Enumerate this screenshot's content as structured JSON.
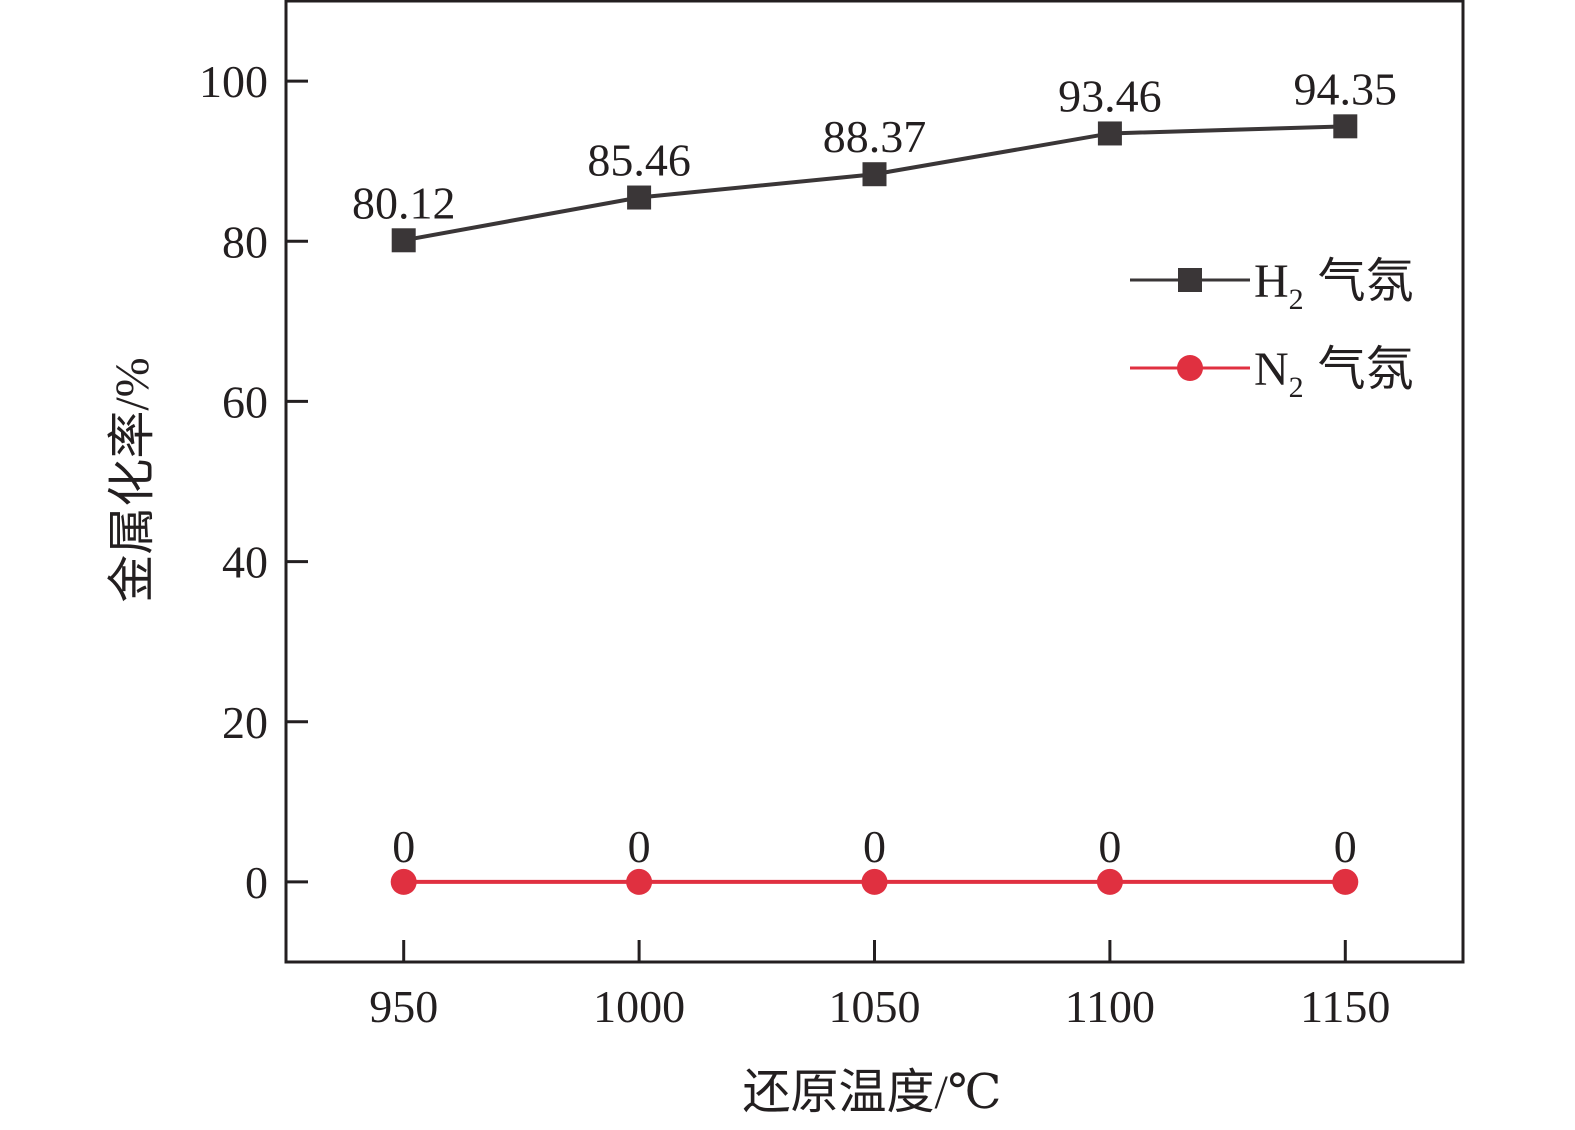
{
  "chart_data": {
    "type": "line",
    "title": "",
    "xlabel": "还原温度/℃",
    "ylabel": "金属化率/%",
    "x": [
      950,
      1000,
      1050,
      1100,
      1150
    ],
    "xlim": [
      925,
      1175
    ],
    "ylim": [
      -10,
      110
    ],
    "xticks": [
      950,
      1000,
      1050,
      1100,
      1150
    ],
    "yticks": [
      0,
      20,
      40,
      60,
      80,
      100
    ],
    "grid": false,
    "legend_position": "right",
    "series": [
      {
        "name": "H2 气氛",
        "name_main": "H",
        "name_sub": "2",
        "name_suffix": "气氛",
        "values": [
          80.12,
          85.46,
          88.37,
          93.46,
          94.35
        ],
        "labels": [
          "80.12",
          "85.46",
          "88.37",
          "93.46",
          "94.35"
        ],
        "color": "#3a3637",
        "marker": "square"
      },
      {
        "name": "N2 气氛",
        "name_main": "N",
        "name_sub": "2",
        "name_suffix": "气氛",
        "values": [
          0,
          0,
          0,
          0,
          0
        ],
        "labels": [
          "0",
          "0",
          "0",
          "0",
          "0"
        ],
        "color": "#e03040",
        "marker": "circle"
      }
    ]
  }
}
